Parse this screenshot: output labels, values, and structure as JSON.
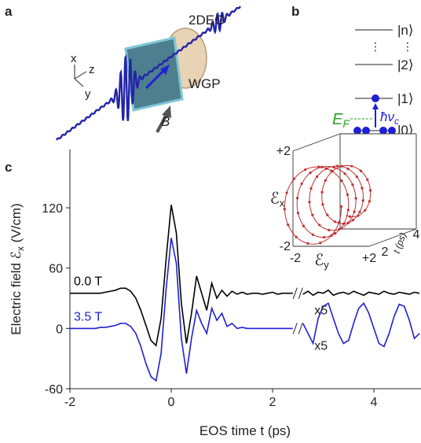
{
  "panel_a": {
    "label": "a",
    "sample": "2DEG",
    "polarizer": "WGP",
    "axes": [
      "x",
      "z",
      "y"
    ],
    "field": "B"
  },
  "panel_b": {
    "label": "b",
    "levels": [
      "|n⟩",
      "|2⟩",
      "|1⟩",
      "|0⟩"
    ],
    "ellipsis": [
      "⋮",
      "⋮"
    ],
    "fermi_level": "E",
    "fermi_subscript": "F",
    "transition": "ħν",
    "transition_subscript": "c"
  },
  "chart_data": {
    "type": "line",
    "panel_label": "c",
    "x_label": "EOS time t (ps)",
    "y_label": {
      "text": "Electric field ℰ",
      "subscript": "x",
      "unit": " (V/cm)"
    },
    "x": [
      -2.0,
      -1.9,
      -1.8,
      -1.7,
      -1.6,
      -1.5,
      -1.4,
      -1.3,
      -1.2,
      -1.1,
      -1.0,
      -0.9,
      -0.8,
      -0.7,
      -0.6,
      -0.5,
      -0.4,
      -0.3,
      -0.2,
      -0.1,
      0.0,
      0.1,
      0.2,
      0.3,
      0.4,
      0.5,
      0.6,
      0.7,
      0.8,
      0.9,
      1.0,
      1.1,
      1.2,
      1.3,
      1.4,
      1.5,
      1.6,
      1.7,
      1.8,
      1.9,
      2.0,
      2.1,
      2.2,
      2.3,
      2.4,
      2.5,
      2.6,
      2.7,
      2.8,
      2.9,
      3.0,
      3.1,
      3.2,
      3.3,
      3.4,
      3.5,
      3.6,
      3.7,
      3.8,
      3.9,
      4.0,
      4.1,
      4.2,
      4.3,
      4.4,
      4.5,
      4.6,
      4.7,
      4.8,
      4.9
    ],
    "series": [
      {
        "name": "0.0 T",
        "color": "#000000",
        "values": [
          35,
          35,
          35,
          35,
          35,
          35,
          35,
          36,
          37,
          38,
          40,
          40,
          37,
          30,
          18,
          3,
          -12,
          -17,
          10,
          70,
          123,
          95,
          25,
          -15,
          15,
          52,
          35,
          18,
          45,
          30,
          38,
          32,
          37,
          34,
          36,
          34,
          35,
          35,
          34,
          35,
          36,
          34,
          35,
          35,
          35,
          null,
          34,
          37,
          33,
          36,
          35,
          38,
          33,
          35,
          36,
          34,
          37,
          35,
          33,
          36,
          35,
          34,
          37,
          35,
          34,
          36,
          35,
          34,
          36,
          35
        ]
      },
      {
        "name": "3.5 T",
        "color": "#1f1fd6",
        "values": [
          0,
          0,
          0,
          0,
          0,
          0,
          1,
          1,
          2,
          3,
          5,
          5,
          2,
          -5,
          -18,
          -35,
          -48,
          -52,
          -25,
          40,
          90,
          65,
          -10,
          -45,
          -10,
          18,
          5,
          -5,
          20,
          8,
          15,
          2,
          5,
          0,
          1,
          0,
          0,
          0,
          0,
          0,
          0,
          0,
          0,
          0,
          0,
          null,
          5,
          -5,
          -15,
          10,
          22,
          25,
          10,
          -5,
          -15,
          -12,
          5,
          20,
          25,
          15,
          0,
          -15,
          -18,
          -5,
          12,
          24,
          22,
          8,
          -10,
          -5
        ]
      }
    ],
    "xlim": [
      -2,
      4.93
    ],
    "ylim": [
      -60,
      178
    ],
    "xticks": [
      -2,
      0,
      2,
      4
    ],
    "yticks": [
      -60,
      0,
      60,
      120
    ],
    "annotations": [
      "x5",
      "x5"
    ],
    "inset": {
      "y_label": "ℰ",
      "y_subscript": "x",
      "x_label": "ℰ",
      "x_subscript": "y",
      "z_label": "t (ps)",
      "y_ticks": [
        "+2",
        "-2"
      ],
      "x_ticks": [
        "-2",
        "+2"
      ],
      "z_ticks": [
        "2",
        "4"
      ]
    }
  }
}
